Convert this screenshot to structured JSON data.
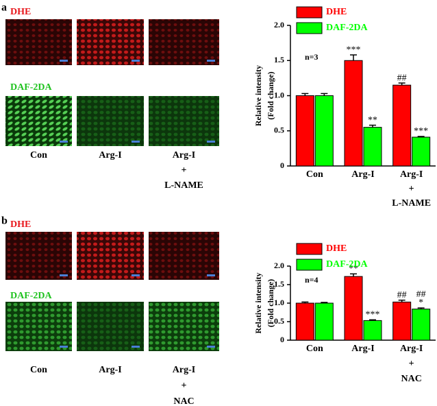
{
  "figure_panels": [
    {
      "label": "a",
      "rows": [
        "DHE",
        "DAF-2DA"
      ],
      "columns": [
        [
          "Con"
        ],
        [
          "Arg-I"
        ],
        [
          "Arg-I",
          "+",
          "L-NAME"
        ]
      ]
    },
    {
      "label": "b",
      "rows": [
        "DHE",
        "DAF-2DA"
      ],
      "columns": [
        [
          "Con"
        ],
        [
          "Arg-I"
        ],
        [
          "Arg-I",
          "+",
          "NAC"
        ]
      ]
    }
  ],
  "chart_data": [
    {
      "type": "bar",
      "y_label": [
        "Relative intensity",
        "(Fold change)"
      ],
      "note": "n=3",
      "categories": [
        [
          "Con"
        ],
        [
          "Arg-I"
        ],
        [
          "Arg-I",
          "+",
          "L-NAME"
        ]
      ],
      "series": [
        {
          "name": "DHE",
          "color": "#ff0000",
          "values": [
            1.0,
            1.5,
            1.15
          ],
          "errors": [
            0.03,
            0.08,
            0.03
          ],
          "annotations": [
            [],
            [
              "***"
            ],
            [
              "##"
            ]
          ]
        },
        {
          "name": "DAF-2DA",
          "color": "#00ff00",
          "values": [
            1.0,
            0.55,
            0.41
          ],
          "errors": [
            0.03,
            0.03,
            0.01
          ],
          "annotations": [
            [],
            [
              "**"
            ],
            [
              "***"
            ]
          ]
        }
      ],
      "ylim": [
        0,
        2
      ],
      "yticks": [
        0,
        0.5,
        {
          "value": 1,
          "label": "1.0"
        },
        1.5,
        {
          "value": 2,
          "label": "2.0"
        }
      ],
      "legend": "top"
    },
    {
      "type": "bar",
      "y_label": [
        "Relative intensity",
        "(Fold change)"
      ],
      "note": "n=4",
      "categories": [
        [
          "Con"
        ],
        [
          "Arg-I"
        ],
        [
          "Arg-I",
          "+",
          "NAC"
        ]
      ],
      "series": [
        {
          "name": "DHE",
          "color": "#ff0000",
          "values": [
            1.0,
            1.72,
            1.03
          ],
          "errors": [
            0.03,
            0.07,
            0.05
          ],
          "annotations": [
            [],
            [
              "**"
            ],
            [
              "##"
            ]
          ]
        },
        {
          "name": "DAF-2DA",
          "color": "#00ff00",
          "values": [
            1.0,
            0.53,
            0.84
          ],
          "errors": [
            0.02,
            0.02,
            0.03
          ],
          "annotations": [
            [],
            [
              "***"
            ],
            [
              "##",
              "*"
            ]
          ]
        }
      ],
      "ylim": [
        0,
        2
      ],
      "yticks": [
        0,
        0.5,
        {
          "value": 1,
          "label": "1.0"
        },
        1.5,
        {
          "value": 2,
          "label": "2.0"
        }
      ],
      "legend": "top"
    }
  ]
}
